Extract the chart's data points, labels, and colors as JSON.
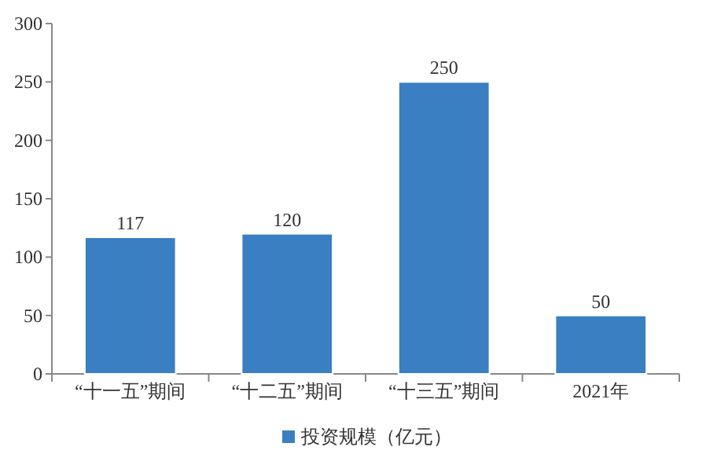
{
  "chart_data": {
    "type": "bar",
    "categories": [
      "“十一五”期间",
      "“十二五”期间",
      "“十三五”期间",
      "2021年"
    ],
    "series": [
      {
        "name": "投资规模（亿元）",
        "color": "#3a7fc1",
        "values": [
          117,
          120,
          250,
          50
        ]
      }
    ],
    "ylim": [
      0,
      300
    ],
    "yticks": [
      0,
      50,
      100,
      150,
      200,
      250,
      300
    ],
    "data_labels": true,
    "legend": "bottom",
    "grid": false
  }
}
